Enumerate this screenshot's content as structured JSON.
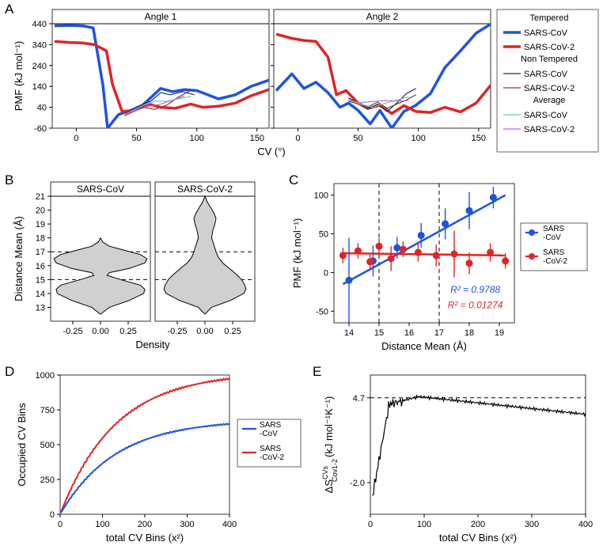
{
  "labels": {
    "A": "A",
    "B": "B",
    "C": "C",
    "D": "D",
    "E": "E"
  },
  "colors": {
    "sarscov_tempered": "#1e53e0",
    "sarscov2_tempered": "#e02424",
    "sarscov_nontempered": "#1f2a6b",
    "sarscov2_nontempered": "#8b3d2e",
    "sarscov_avg": "#5fd0c5",
    "sarscov2_avg": "#b86bd6",
    "axis": "#000000",
    "grid": "#e0e0e0",
    "violin_fill": "#d0d0d0",
    "violin_stroke": "#000000",
    "r2_cov": "#1e53e0",
    "r2_cov2": "#e02424",
    "entropy_line": "#000000",
    "background": "#ffffff"
  },
  "global_fonts": {
    "axis_title": 13,
    "tick": 11,
    "facet_label": 12,
    "legend_title": 11,
    "legend_item": 11,
    "panel_label": 17
  },
  "panel_A": {
    "type": "line",
    "facets": [
      "Angle 1",
      "Angle 2"
    ],
    "x_label": "CV (°)",
    "y_label": "PMF (kJ mol⁻¹)",
    "xlim": [
      -20,
      160
    ],
    "ylim": [
      -60,
      440
    ],
    "xticks": [
      0,
      50,
      100,
      150
    ],
    "yticks": [
      -60,
      40,
      140,
      240,
      340,
      440
    ],
    "line_width_tempered": 3.5,
    "line_width_thin": 1.2,
    "series": {
      "angle1": {
        "SARS-CoV_tempered": [
          [
            -18,
            430
          ],
          [
            -5,
            432
          ],
          [
            5,
            430
          ],
          [
            14,
            420
          ],
          [
            22,
            150
          ],
          [
            26,
            -60
          ],
          [
            35,
            5
          ],
          [
            45,
            25
          ],
          [
            55,
            50
          ],
          [
            70,
            130
          ],
          [
            80,
            115
          ],
          [
            90,
            125
          ],
          [
            100,
            120
          ],
          [
            118,
            80
          ],
          [
            132,
            100
          ],
          [
            145,
            140
          ],
          [
            160,
            170
          ]
        ],
        "SARS-CoV-2_tempered": [
          [
            -18,
            355
          ],
          [
            -5,
            350
          ],
          [
            5,
            348
          ],
          [
            15,
            340
          ],
          [
            25,
            310
          ],
          [
            30,
            150
          ],
          [
            38,
            20
          ],
          [
            48,
            25
          ],
          [
            60,
            55
          ],
          [
            70,
            40
          ],
          [
            82,
            35
          ],
          [
            95,
            55
          ],
          [
            105,
            40
          ],
          [
            118,
            45
          ],
          [
            132,
            60
          ],
          [
            145,
            95
          ],
          [
            160,
            125
          ]
        ],
        "SARS-CoV_nontempered": [
          [
            40,
            10
          ],
          [
            48,
            30
          ],
          [
            55,
            55
          ],
          [
            62,
            70
          ],
          [
            70,
            110
          ],
          [
            78,
            100
          ],
          [
            88,
            115
          ],
          [
            98,
            100
          ]
        ],
        "SARS-CoV-2_nontempered": [
          [
            40,
            0
          ],
          [
            48,
            20
          ],
          [
            55,
            40
          ],
          [
            65,
            30
          ],
          [
            75,
            50
          ],
          [
            85,
            90
          ],
          [
            95,
            120
          ]
        ],
        "SARS-CoV_avg": [
          [
            40,
            5
          ],
          [
            48,
            28
          ],
          [
            55,
            48
          ],
          [
            65,
            70
          ],
          [
            75,
            68
          ],
          [
            85,
            80
          ],
          [
            95,
            92
          ]
        ],
        "SARS-CoV-2_avg": [
          [
            40,
            8
          ],
          [
            50,
            25
          ],
          [
            60,
            45
          ],
          [
            70,
            55
          ],
          [
            80,
            75
          ],
          [
            90,
            95
          ]
        ]
      },
      "angle2": {
        "SARS-CoV_tempered": [
          [
            -18,
            120
          ],
          [
            -5,
            200
          ],
          [
            5,
            130
          ],
          [
            15,
            160
          ],
          [
            25,
            110
          ],
          [
            35,
            40
          ],
          [
            42,
            60
          ],
          [
            50,
            25
          ],
          [
            60,
            -40
          ],
          [
            68,
            25
          ],
          [
            78,
            -60
          ],
          [
            88,
            20
          ],
          [
            98,
            50
          ],
          [
            110,
            105
          ],
          [
            122,
            230
          ],
          [
            135,
            310
          ],
          [
            148,
            395
          ],
          [
            160,
            438
          ]
        ],
        "SARS-CoV-2_tempered": [
          [
            -18,
            390
          ],
          [
            -5,
            370
          ],
          [
            5,
            360
          ],
          [
            15,
            355
          ],
          [
            25,
            280
          ],
          [
            32,
            100
          ],
          [
            40,
            120
          ],
          [
            50,
            60
          ],
          [
            58,
            35
          ],
          [
            68,
            50
          ],
          [
            78,
            10
          ],
          [
            88,
            48
          ],
          [
            98,
            20
          ],
          [
            110,
            15
          ],
          [
            122,
            40
          ],
          [
            135,
            18
          ],
          [
            148,
            60
          ],
          [
            160,
            145
          ]
        ],
        "SARS-CoV_nontempered": [
          [
            42,
            85
          ],
          [
            50,
            60
          ],
          [
            58,
            30
          ],
          [
            66,
            55
          ],
          [
            74,
            20
          ],
          [
            82,
            60
          ],
          [
            90,
            105
          ],
          [
            98,
            130
          ]
        ],
        "SARS-CoV-2_nontempered": [
          [
            42,
            70
          ],
          [
            50,
            55
          ],
          [
            58,
            42
          ],
          [
            66,
            65
          ],
          [
            74,
            35
          ],
          [
            82,
            55
          ],
          [
            90,
            75
          ],
          [
            98,
            100
          ]
        ],
        "SARS-CoV_avg": [
          [
            42,
            78
          ],
          [
            52,
            55
          ],
          [
            62,
            40
          ],
          [
            72,
            58
          ],
          [
            82,
            75
          ],
          [
            92,
            90
          ]
        ],
        "SARS-CoV-2_avg": [
          [
            42,
            72
          ],
          [
            52,
            62
          ],
          [
            62,
            68
          ],
          [
            72,
            72
          ],
          [
            82,
            70
          ],
          [
            92,
            72
          ]
        ]
      }
    },
    "legend": {
      "groups": [
        {
          "title": "Tempered",
          "items": [
            {
              "label": "SARS-CoV",
              "color": "#1e53e0",
              "lw": 3.5
            },
            {
              "label": "SARS-CoV-2",
              "color": "#e02424",
              "lw": 3.5
            }
          ]
        },
        {
          "title": "Non Tempered",
          "items": [
            {
              "label": "SARS-CoV",
              "color": "#1f2a6b",
              "lw": 1.2
            },
            {
              "label": "SARS-CoV-2",
              "color": "#8b3d2e",
              "lw": 1.2
            }
          ]
        },
        {
          "title": "Average",
          "items": [
            {
              "label": "SARS-CoV",
              "color": "#5fd0c5",
              "lw": 1.2
            },
            {
              "label": "SARS-CoV-2",
              "color": "#b86bd6",
              "lw": 1.2
            }
          ]
        }
      ]
    }
  },
  "panel_B": {
    "type": "violin",
    "facets": [
      "SARS-CoV",
      "SARS-CoV-2"
    ],
    "x_label": "Density",
    "y_label": "Distance Mean (Å)",
    "xlim": [
      -0.45,
      0.45
    ],
    "ylim": [
      12,
      21
    ],
    "xticks": [
      -0.25,
      0.0,
      0.25
    ],
    "yticks": [
      13,
      14,
      15,
      16,
      17,
      18,
      19,
      20,
      21
    ],
    "hlines": [
      15,
      17
    ],
    "violins": {
      "SARS-CoV": [
        [
          12.5,
          0.0
        ],
        [
          13.0,
          0.08
        ],
        [
          13.5,
          0.26
        ],
        [
          14.0,
          0.39
        ],
        [
          14.3,
          0.4
        ],
        [
          14.6,
          0.36
        ],
        [
          15.0,
          0.18
        ],
        [
          15.3,
          0.06
        ],
        [
          15.5,
          0.08
        ],
        [
          15.8,
          0.26
        ],
        [
          16.2,
          0.4
        ],
        [
          16.5,
          0.42
        ],
        [
          16.8,
          0.36
        ],
        [
          17.1,
          0.22
        ],
        [
          17.4,
          0.08
        ],
        [
          17.7,
          0.02
        ],
        [
          18.0,
          0.0
        ]
      ],
      "SARS-CoV-2": [
        [
          12.5,
          0.0
        ],
        [
          13.0,
          0.06
        ],
        [
          13.5,
          0.23
        ],
        [
          14.0,
          0.35
        ],
        [
          14.3,
          0.37
        ],
        [
          14.6,
          0.36
        ],
        [
          15.0,
          0.33
        ],
        [
          15.4,
          0.28
        ],
        [
          15.8,
          0.22
        ],
        [
          16.2,
          0.16
        ],
        [
          16.6,
          0.12
        ],
        [
          17.0,
          0.1
        ],
        [
          17.5,
          0.08
        ],
        [
          18.0,
          0.06
        ],
        [
          18.5,
          0.07
        ],
        [
          19.0,
          0.09
        ],
        [
          19.4,
          0.1
        ],
        [
          19.8,
          0.08
        ],
        [
          20.2,
          0.05
        ],
        [
          20.6,
          0.02
        ],
        [
          20.9,
          0.005
        ],
        [
          21.0,
          0.0
        ]
      ]
    }
  },
  "panel_C": {
    "type": "scatter",
    "x_label": "Distance Mean (Å)",
    "y_label": "PMF (kJ mol⁻¹)",
    "xlim": [
      13.5,
      19.5
    ],
    "ylim": [
      -65,
      115
    ],
    "xticks": [
      14,
      15,
      16,
      17,
      18,
      19
    ],
    "yticks": [
      -50,
      0,
      50,
      100
    ],
    "vlines": [
      15,
      17
    ],
    "marker_size": 4.5,
    "line_width": 2.5,
    "r2_cov": "R² = 0.9788",
    "r2_cov2": "R² = 0.01274",
    "legend_items": [
      {
        "label": "SARS\n-CoV",
        "color": "#1e53e0"
      },
      {
        "label": "SARS\n-CoV-2",
        "color": "#e02424"
      }
    ],
    "data": {
      "SARS-CoV": {
        "points": [
          [
            14.0,
            -10,
            55
          ],
          [
            14.8,
            15,
            20
          ],
          [
            15.6,
            32,
            14
          ],
          [
            16.4,
            48,
            16
          ],
          [
            17.2,
            63,
            20
          ],
          [
            18.0,
            80,
            24
          ],
          [
            18.8,
            97,
            14
          ]
        ],
        "fit": [
          [
            13.8,
            -15
          ],
          [
            19.2,
            100
          ]
        ]
      },
      "SARS-CoV-2": {
        "points": [
          [
            13.8,
            22,
            10
          ],
          [
            14.3,
            28,
            10
          ],
          [
            14.7,
            14,
            9
          ],
          [
            15.0,
            34,
            11
          ],
          [
            15.4,
            18,
            16
          ],
          [
            15.8,
            30,
            10
          ],
          [
            16.3,
            26,
            12
          ],
          [
            16.9,
            22,
            14
          ],
          [
            17.5,
            24,
            30
          ],
          [
            18.0,
            12,
            14
          ],
          [
            18.7,
            26,
            12
          ],
          [
            19.2,
            15,
            10
          ]
        ],
        "fit": [
          [
            13.8,
            25
          ],
          [
            19.2,
            22
          ]
        ]
      }
    }
  },
  "panel_D": {
    "type": "line",
    "x_label": "total CV Bins (x²)",
    "y_label": "Occupied CV Bins",
    "xlim": [
      0,
      400
    ],
    "ylim": [
      0,
      1000
    ],
    "xticks": [
      0,
      100,
      200,
      300,
      400
    ],
    "yticks": [
      0,
      250,
      500,
      750,
      1000
    ],
    "line_width": 2,
    "legend_items": [
      {
        "label": "SARS\n-CoV",
        "color": "#1e53e0"
      },
      {
        "label": "SARS\n-CoV-2",
        "color": "#e02424"
      }
    ]
  },
  "panel_E": {
    "type": "line",
    "x_label": "total CV Bins (x²)",
    "y_label": "ΔS (kJ mol⁻¹K⁻¹)",
    "y_label_sub": "Cov1-2",
    "y_label_sup": "CVs",
    "xlim": [
      0,
      400
    ],
    "ylim": [
      -4.5,
      6.5
    ],
    "xticks": [
      0,
      100,
      200,
      300,
      400
    ],
    "yticks": [
      -2.0,
      4.7
    ],
    "hline": 4.7,
    "line_width": 1.2,
    "color": "#000000"
  }
}
